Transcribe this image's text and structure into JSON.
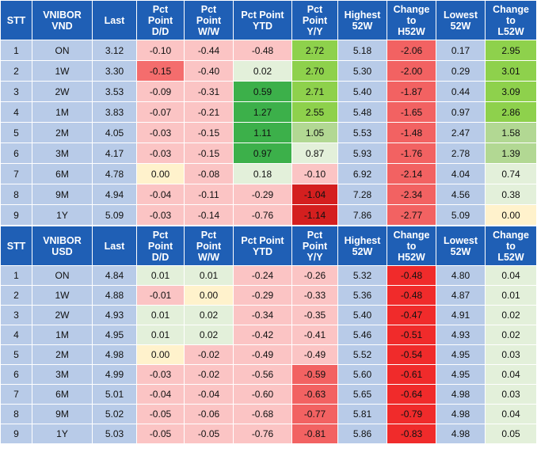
{
  "columns": [
    "STT",
    "VNIBOR VND",
    "Last",
    "Pct Point D/D",
    "Pct Point W/W",
    "Pct Point YTD",
    "Pct Point Y/Y",
    "Highest 52W",
    "Change to H52W",
    "Lowest 52W",
    "Change to L52W"
  ],
  "tables": [
    {
      "headers": [
        [
          "STT"
        ],
        [
          "VNIBOR",
          "VND"
        ],
        [
          "Last"
        ],
        [
          "Pct",
          "Point",
          "D/D"
        ],
        [
          "Pct",
          "Point",
          "W/W"
        ],
        [
          "Pct Point",
          "YTD"
        ],
        [
          "Pct",
          "Point",
          "Y/Y"
        ],
        [
          "Highest",
          "52W"
        ],
        [
          "Change",
          "to",
          "H52W"
        ],
        [
          "Lowest",
          "52W"
        ],
        [
          "Change",
          "to",
          "L52W"
        ]
      ],
      "rows": [
        [
          "1",
          "ON",
          "3.12",
          "-0.10",
          "-0.44",
          "-0.48",
          "2.72",
          "5.18",
          "-2.06",
          "0.17",
          "2.95"
        ],
        [
          "2",
          "1W",
          "3.30",
          "-0.15",
          "-0.40",
          "0.02",
          "2.70",
          "5.30",
          "-2.00",
          "0.29",
          "3.01"
        ],
        [
          "3",
          "2W",
          "3.53",
          "-0.09",
          "-0.31",
          "0.59",
          "2.71",
          "5.40",
          "-1.87",
          "0.44",
          "3.09"
        ],
        [
          "4",
          "1M",
          "3.83",
          "-0.07",
          "-0.21",
          "1.27",
          "2.55",
          "5.48",
          "-1.65",
          "0.97",
          "2.86"
        ],
        [
          "5",
          "2M",
          "4.05",
          "-0.03",
          "-0.15",
          "1.11",
          "1.05",
          "5.53",
          "-1.48",
          "2.47",
          "1.58"
        ],
        [
          "6",
          "3M",
          "4.17",
          "-0.03",
          "-0.15",
          "0.97",
          "0.87",
          "5.93",
          "-1.76",
          "2.78",
          "1.39"
        ],
        [
          "7",
          "6M",
          "4.78",
          "0.00",
          "-0.08",
          "0.18",
          "-0.10",
          "6.92",
          "-2.14",
          "4.04",
          "0.74"
        ],
        [
          "8",
          "9M",
          "4.94",
          "-0.04",
          "-0.11",
          "-0.29",
          "-1.04",
          "7.28",
          "-2.34",
          "4.56",
          "0.38"
        ],
        [
          "9",
          "1Y",
          "5.09",
          "-0.03",
          "-0.14",
          "-0.76",
          "-1.14",
          "7.86",
          "-2.77",
          "5.09",
          "0.00"
        ]
      ],
      "colors": [
        [
          "",
          "",
          "",
          "#fbc4c4",
          "#fbc4c4",
          "#fbc4c4",
          "#8ed14c",
          "",
          "#f26262",
          "",
          "#8ed14c"
        ],
        [
          "",
          "",
          "",
          "#f46d6d",
          "#fbc4c4",
          "#e3f0da",
          "#8ed14c",
          "",
          "#f26262",
          "",
          "#8ed14c"
        ],
        [
          "",
          "",
          "",
          "#fbc4c4",
          "#fbc4c4",
          "#3cb04a",
          "#8ed14c",
          "",
          "#f26262",
          "",
          "#8ed14c"
        ],
        [
          "",
          "",
          "",
          "#fbc4c4",
          "#fbc4c4",
          "#3cb04a",
          "#8ed14c",
          "",
          "#f26262",
          "",
          "#8ed14c"
        ],
        [
          "",
          "",
          "",
          "#fbc4c4",
          "#fbc4c4",
          "#3cb04a",
          "#b2d893",
          "",
          "#f26262",
          "",
          "#b2d893"
        ],
        [
          "",
          "",
          "",
          "#fbc4c4",
          "#fbc4c4",
          "#3cb04a",
          "#e3f0da",
          "",
          "#f26262",
          "",
          "#b2d893"
        ],
        [
          "",
          "",
          "",
          "#fff2cc",
          "#fbc4c4",
          "#e3f0da",
          "#fbc4c4",
          "",
          "#f26262",
          "",
          "#e3f0da"
        ],
        [
          "",
          "",
          "",
          "#fbc4c4",
          "#fbc4c4",
          "#fbc4c4",
          "#d41f1f",
          "",
          "#f26262",
          "",
          "#e3f0da"
        ],
        [
          "",
          "",
          "",
          "#fbc4c4",
          "#fbc4c4",
          "#fbc4c4",
          "#d41f1f",
          "",
          "#f26262",
          "",
          "#fff2cc"
        ]
      ]
    },
    {
      "headers": [
        [
          "STT"
        ],
        [
          "VNIBOR",
          "USD"
        ],
        [
          "Last"
        ],
        [
          "Pct",
          "Point",
          "D/D"
        ],
        [
          "Pct",
          "Point",
          "W/W"
        ],
        [
          "Pct Point",
          "YTD"
        ],
        [
          "Pct",
          "Point",
          "Y/Y"
        ],
        [
          "Highest",
          "52W"
        ],
        [
          "Change",
          "to",
          "H52W"
        ],
        [
          "Lowest",
          "52W"
        ],
        [
          "Change",
          "to",
          "L52W"
        ]
      ],
      "rows": [
        [
          "1",
          "ON",
          "4.84",
          "0.01",
          "0.01",
          "-0.24",
          "-0.26",
          "5.32",
          "-0.48",
          "4.80",
          "0.04"
        ],
        [
          "2",
          "1W",
          "4.88",
          "-0.01",
          "0.00",
          "-0.29",
          "-0.33",
          "5.36",
          "-0.48",
          "4.87",
          "0.01"
        ],
        [
          "3",
          "2W",
          "4.93",
          "0.01",
          "0.02",
          "-0.34",
          "-0.35",
          "5.40",
          "-0.47",
          "4.91",
          "0.02"
        ],
        [
          "4",
          "1M",
          "4.95",
          "0.01",
          "0.02",
          "-0.42",
          "-0.41",
          "5.46",
          "-0.51",
          "4.93",
          "0.02"
        ],
        [
          "5",
          "2M",
          "4.98",
          "0.00",
          "-0.02",
          "-0.49",
          "-0.49",
          "5.52",
          "-0.54",
          "4.95",
          "0.03"
        ],
        [
          "6",
          "3M",
          "4.99",
          "-0.03",
          "-0.02",
          "-0.56",
          "-0.59",
          "5.60",
          "-0.61",
          "4.95",
          "0.04"
        ],
        [
          "7",
          "6M",
          "5.01",
          "-0.04",
          "-0.04",
          "-0.60",
          "-0.63",
          "5.65",
          "-0.64",
          "4.98",
          "0.03"
        ],
        [
          "8",
          "9M",
          "5.02",
          "-0.05",
          "-0.06",
          "-0.68",
          "-0.77",
          "5.81",
          "-0.79",
          "4.98",
          "0.04"
        ],
        [
          "9",
          "1Y",
          "5.03",
          "-0.05",
          "-0.05",
          "-0.76",
          "-0.81",
          "5.86",
          "-0.83",
          "4.98",
          "0.05"
        ]
      ],
      "colors": [
        [
          "",
          "",
          "",
          "#e3f0da",
          "#e3f0da",
          "#fbc4c4",
          "#fbc4c4",
          "",
          "#f02b2b",
          "",
          "#e3f0da"
        ],
        [
          "",
          "",
          "",
          "#fbc4c4",
          "#fff2cc",
          "#fbc4c4",
          "#fbc4c4",
          "",
          "#f02b2b",
          "",
          "#e3f0da"
        ],
        [
          "",
          "",
          "",
          "#e3f0da",
          "#e3f0da",
          "#fbc4c4",
          "#fbc4c4",
          "",
          "#f02b2b",
          "",
          "#e3f0da"
        ],
        [
          "",
          "",
          "",
          "#e3f0da",
          "#e3f0da",
          "#fbc4c4",
          "#fbc4c4",
          "",
          "#f02b2b",
          "",
          "#e3f0da"
        ],
        [
          "",
          "",
          "",
          "#fff2cc",
          "#fbc4c4",
          "#fbc4c4",
          "#fbc4c4",
          "",
          "#f02b2b",
          "",
          "#e3f0da"
        ],
        [
          "",
          "",
          "",
          "#fbc4c4",
          "#fbc4c4",
          "#fbc4c4",
          "#f26262",
          "",
          "#f02b2b",
          "",
          "#e3f0da"
        ],
        [
          "",
          "",
          "",
          "#fbc4c4",
          "#fbc4c4",
          "#fbc4c4",
          "#f26262",
          "",
          "#f02b2b",
          "",
          "#e3f0da"
        ],
        [
          "",
          "",
          "",
          "#fbc4c4",
          "#fbc4c4",
          "#fbc4c4",
          "#f26262",
          "",
          "#f02b2b",
          "",
          "#e3f0da"
        ],
        [
          "",
          "",
          "",
          "#fbc4c4",
          "#fbc4c4",
          "#fbc4c4",
          "#f26262",
          "",
          "#f02b2b",
          "",
          "#e3f0da"
        ]
      ]
    }
  ]
}
